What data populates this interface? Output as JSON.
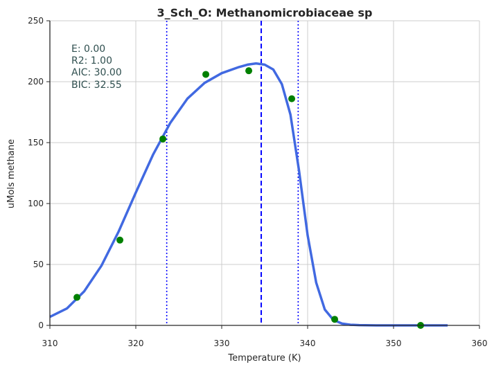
{
  "chart_data": {
    "type": "line",
    "title": "3_Sch_O: Methanomicrobiaceae sp",
    "xlabel": "Temperature (K)",
    "ylabel": "uMols methane",
    "xlim": [
      310,
      360
    ],
    "ylim": [
      0,
      250
    ],
    "xticks": [
      "310",
      "320",
      "330",
      "340",
      "350",
      "360"
    ],
    "yticks": [
      "0",
      "50",
      "100",
      "150",
      "200",
      "250"
    ],
    "grid": true,
    "annotations": [
      "E:  0.00",
      "R2:  1.00",
      "AIC: 30.00",
      "BIC: 32.55"
    ],
    "colors": {
      "fit": "#4169e1",
      "points": "#008000",
      "vlines": "#0000ff"
    },
    "series": [
      {
        "kind": "scatter",
        "x": [
          313.15,
          318.15,
          323.15,
          328.15,
          333.15,
          338.15,
          343.15,
          353.15
        ],
        "y": [
          23,
          70,
          153,
          206,
          209,
          186,
          5,
          0
        ]
      },
      {
        "kind": "line",
        "x": [
          310,
          312,
          314,
          316,
          318,
          320,
          322,
          324,
          326,
          328,
          330,
          332,
          333,
          334,
          335,
          336,
          337,
          338,
          339,
          340,
          341,
          342,
          343,
          344,
          345,
          346,
          348,
          350,
          353,
          356.3
        ],
        "y": [
          7,
          14,
          28,
          49,
          77,
          109,
          140,
          166,
          186,
          199,
          207,
          212,
          214,
          215,
          214,
          210,
          198,
          173,
          127,
          74,
          35,
          13,
          4.5,
          1.5,
          0.5,
          0.2,
          0,
          0,
          0,
          0
        ]
      }
    ],
    "vlines": [
      {
        "x": 334.6,
        "style": "dashed"
      },
      {
        "x": 323.6,
        "style": "dotted"
      },
      {
        "x": 338.9,
        "style": "dotted"
      }
    ]
  }
}
